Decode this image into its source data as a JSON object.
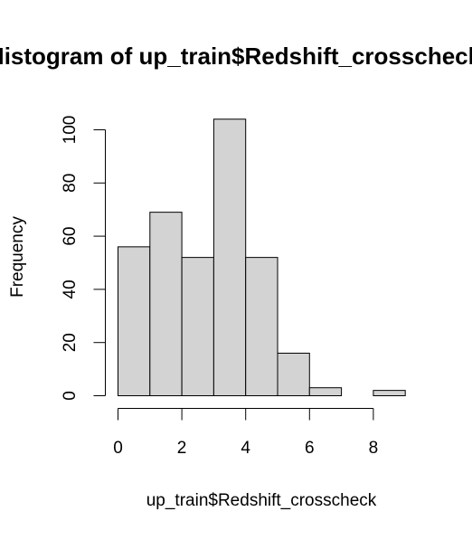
{
  "chart_data": {
    "type": "bar",
    "title": "Histogram of up_train$Redshift_crosscheck",
    "xlabel": "up_train$Redshift_crosscheck",
    "ylabel": "Frequency",
    "bins": [
      {
        "start": 0,
        "end": 1,
        "value": 56
      },
      {
        "start": 1,
        "end": 2,
        "value": 69
      },
      {
        "start": 2,
        "end": 3,
        "value": 52
      },
      {
        "start": 3,
        "end": 4,
        "value": 104
      },
      {
        "start": 4,
        "end": 5,
        "value": 52
      },
      {
        "start": 5,
        "end": 6,
        "value": 16
      },
      {
        "start": 6,
        "end": 7,
        "value": 3
      },
      {
        "start": 7,
        "end": 8,
        "value": 0
      },
      {
        "start": 8,
        "end": 9,
        "value": 2
      }
    ],
    "xlim": [
      0,
      9
    ],
    "ylim": [
      0,
      104
    ],
    "x_ticks": [
      "0",
      "2",
      "4",
      "6",
      "8"
    ],
    "y_ticks": [
      "0",
      "20",
      "40",
      "60",
      "80",
      "100"
    ],
    "colors": {
      "bar_fill": "#d3d3d3",
      "bar_stroke": "#000000"
    }
  }
}
